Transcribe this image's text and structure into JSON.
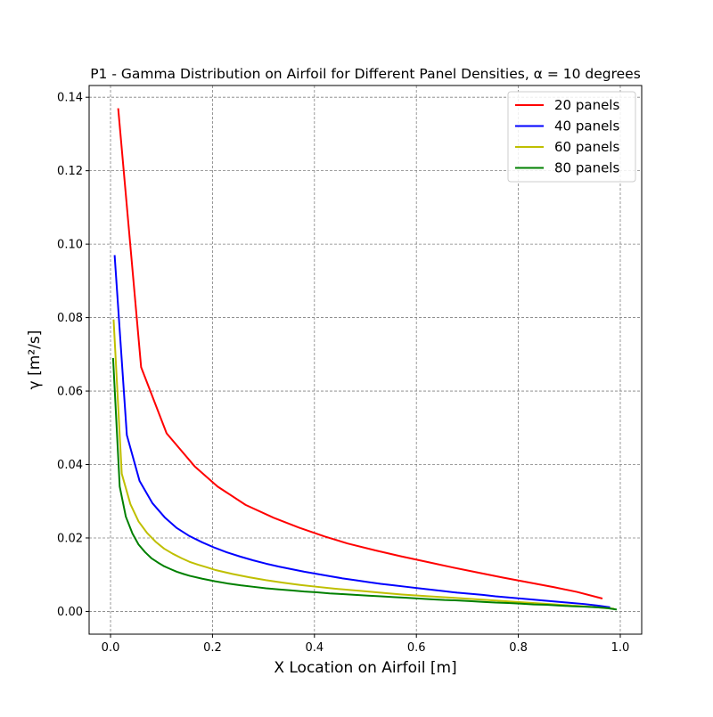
{
  "chart_data": {
    "type": "line",
    "title": "P1 - Gamma Distribution on Airfoil for Different Panel Densities, α = 10 degrees",
    "xlabel": "X Location on Airfoil [m]",
    "ylabel": "γ [m²/s]",
    "xlim": [
      -0.042,
      1.042
    ],
    "ylim": [
      -0.0062,
      0.1432
    ],
    "xticks": [
      0.0,
      0.2,
      0.4,
      0.6,
      0.8,
      1.0
    ],
    "xtick_labels": [
      "0.0",
      "0.2",
      "0.4",
      "0.6",
      "0.8",
      "1.0"
    ],
    "yticks": [
      0.0,
      0.02,
      0.04,
      0.06,
      0.08,
      0.1,
      0.12,
      0.14
    ],
    "ytick_labels": [
      "0.00",
      "0.02",
      "0.04",
      "0.06",
      "0.08",
      "0.10",
      "0.12",
      "0.14"
    ],
    "grid": true,
    "legend_position": "top-right",
    "series": [
      {
        "name": "20 panels",
        "color": "#ff0000",
        "x": [
          0.015,
          0.06,
          0.11,
          0.165,
          0.21,
          0.265,
          0.32,
          0.37,
          0.42,
          0.465,
          0.52,
          0.57,
          0.62,
          0.67,
          0.72,
          0.77,
          0.82,
          0.87,
          0.915,
          0.965
        ],
        "y": [
          0.137,
          0.0665,
          0.0485,
          0.0395,
          0.034,
          0.029,
          0.0255,
          0.0228,
          0.0204,
          0.0185,
          0.0166,
          0.015,
          0.0135,
          0.012,
          0.0106,
          0.0092,
          0.0079,
          0.0066,
          0.0053,
          0.0035
        ]
      },
      {
        "name": "40 panels",
        "color": "#0000ff",
        "x": [
          0.008,
          0.032,
          0.057,
          0.082,
          0.107,
          0.13,
          0.155,
          0.18,
          0.205,
          0.23,
          0.255,
          0.28,
          0.305,
          0.33,
          0.355,
          0.38,
          0.405,
          0.43,
          0.455,
          0.48,
          0.505,
          0.53,
          0.555,
          0.58,
          0.605,
          0.63,
          0.655,
          0.68,
          0.705,
          0.73,
          0.755,
          0.78,
          0.805,
          0.83,
          0.855,
          0.88,
          0.905,
          0.93,
          0.955,
          0.98
        ],
        "y": [
          0.097,
          0.048,
          0.0355,
          0.0295,
          0.0255,
          0.0227,
          0.0205,
          0.0188,
          0.0173,
          0.016,
          0.0149,
          0.0139,
          0.013,
          0.0122,
          0.0115,
          0.0108,
          0.0102,
          0.0096,
          0.009,
          0.0085,
          0.008,
          0.0075,
          0.0071,
          0.0067,
          0.0063,
          0.0059,
          0.0055,
          0.0051,
          0.0048,
          0.0045,
          0.0041,
          0.0038,
          0.0035,
          0.0032,
          0.0029,
          0.0026,
          0.0023,
          0.002,
          0.0016,
          0.0011
        ]
      },
      {
        "name": "60 panels",
        "color": "#bfbf00",
        "x": [
          0.006,
          0.022,
          0.039,
          0.055,
          0.072,
          0.089,
          0.105,
          0.122,
          0.139,
          0.155,
          0.172,
          0.189,
          0.205,
          0.239,
          0.272,
          0.305,
          0.339,
          0.372,
          0.405,
          0.439,
          0.472,
          0.505,
          0.539,
          0.572,
          0.605,
          0.639,
          0.672,
          0.705,
          0.739,
          0.772,
          0.805,
          0.839,
          0.872,
          0.905,
          0.939,
          0.972,
          0.988
        ],
        "y": [
          0.0795,
          0.0375,
          0.0292,
          0.0245,
          0.0213,
          0.0189,
          0.0171,
          0.0157,
          0.0145,
          0.0135,
          0.0127,
          0.012,
          0.0113,
          0.0102,
          0.0093,
          0.0085,
          0.0078,
          0.0072,
          0.0067,
          0.0062,
          0.0058,
          0.0054,
          0.005,
          0.0046,
          0.0043,
          0.004,
          0.0037,
          0.0034,
          0.0031,
          0.0028,
          0.0025,
          0.0022,
          0.0019,
          0.0016,
          0.0013,
          0.0009,
          0.0007
        ]
      },
      {
        "name": "80 panels",
        "color": "#008000",
        "x": [
          0.005,
          0.018,
          0.03,
          0.043,
          0.055,
          0.068,
          0.08,
          0.093,
          0.105,
          0.118,
          0.13,
          0.143,
          0.155,
          0.18,
          0.205,
          0.23,
          0.255,
          0.28,
          0.305,
          0.33,
          0.355,
          0.38,
          0.405,
          0.43,
          0.455,
          0.48,
          0.505,
          0.53,
          0.555,
          0.58,
          0.605,
          0.63,
          0.655,
          0.68,
          0.705,
          0.73,
          0.755,
          0.78,
          0.805,
          0.83,
          0.855,
          0.88,
          0.905,
          0.93,
          0.955,
          0.975,
          0.993
        ],
        "y": [
          0.069,
          0.034,
          0.0258,
          0.0212,
          0.0182,
          0.0161,
          0.0145,
          0.0133,
          0.0123,
          0.0115,
          0.0108,
          0.0102,
          0.0097,
          0.0089,
          0.0082,
          0.0076,
          0.0071,
          0.0067,
          0.0063,
          0.006,
          0.0057,
          0.0054,
          0.0052,
          0.0049,
          0.0047,
          0.0045,
          0.0043,
          0.0041,
          0.0039,
          0.0037,
          0.0035,
          0.0033,
          0.0031,
          0.003,
          0.0028,
          0.0026,
          0.0024,
          0.0023,
          0.0021,
          0.0019,
          0.0018,
          0.0016,
          0.0014,
          0.0013,
          0.0011,
          0.0009,
          0.0005
        ]
      }
    ]
  }
}
